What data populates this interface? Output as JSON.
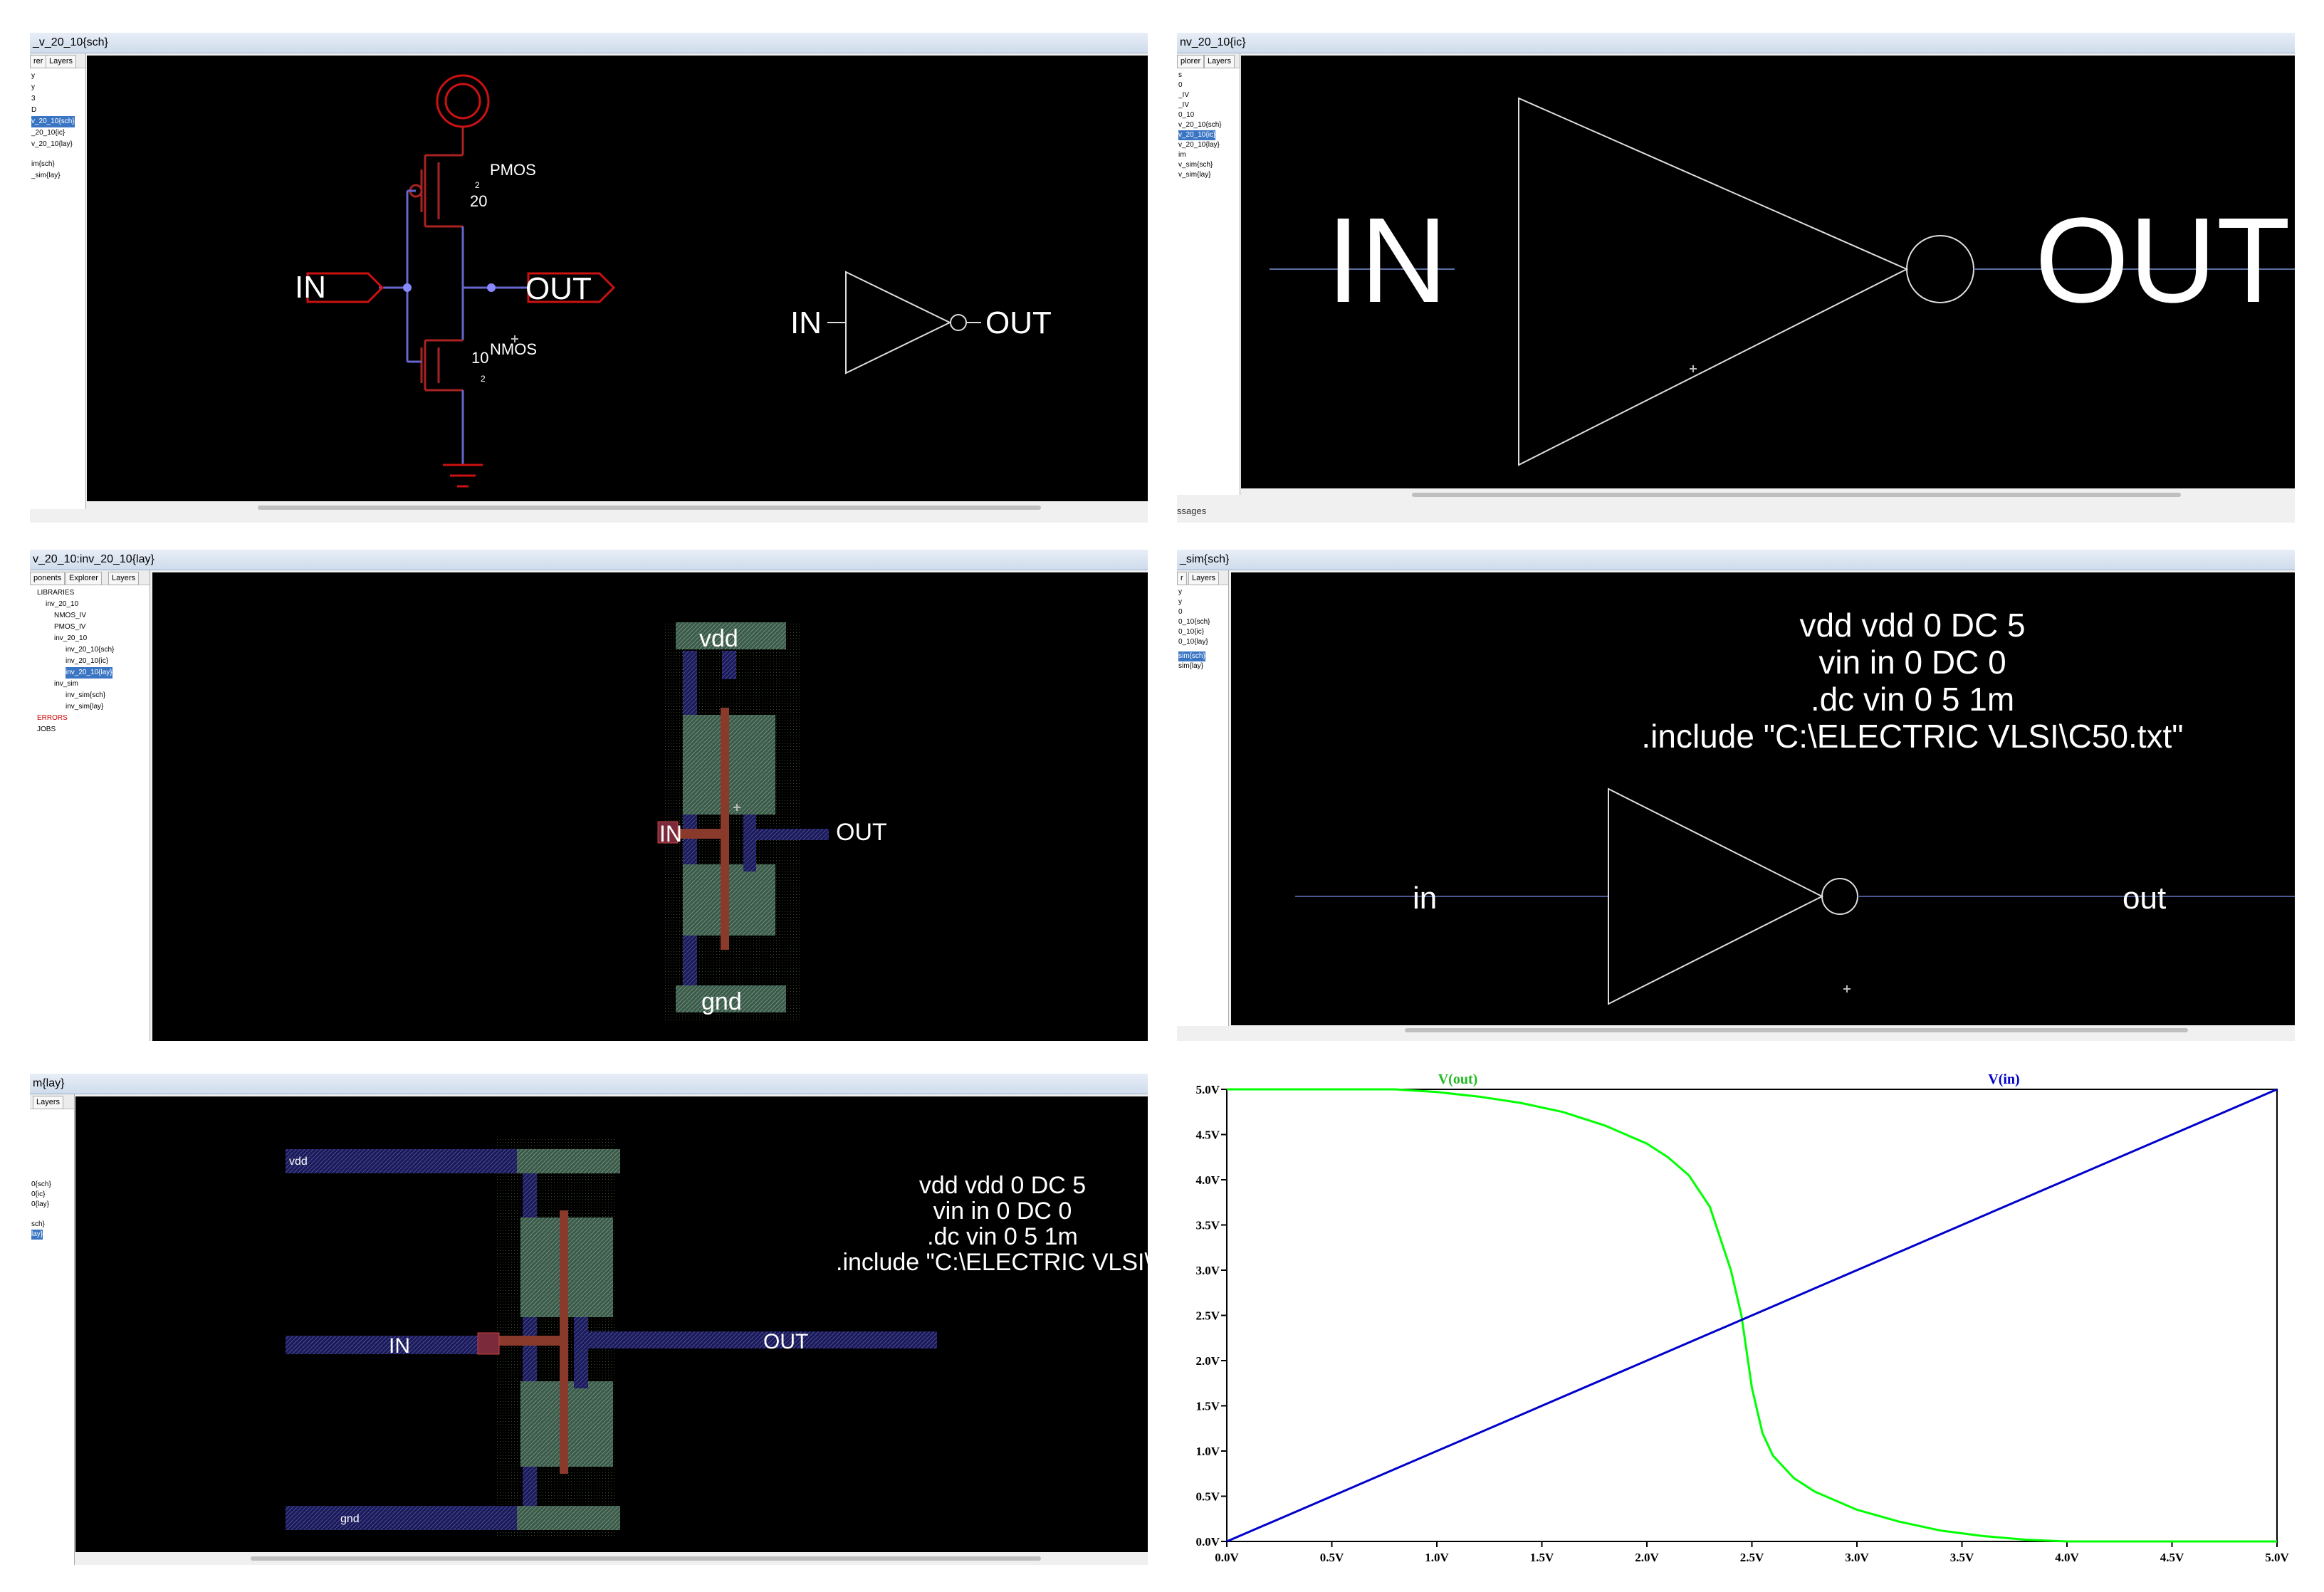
{
  "panels": {
    "sch": {
      "title": "_v_20_10{sch}",
      "tabs": [
        "rer",
        "Layers"
      ],
      "tree": [
        "y",
        "y",
        "3",
        "D",
        "v_20_10{sch}",
        "_20_10{ic}",
        "v_20_10{lay}",
        "im{sch}",
        "_sim{lay}"
      ],
      "tree_selected": 4,
      "labels": {
        "in": "IN",
        "out": "OUT",
        "pmos": "PMOS",
        "nmos": "NMOS",
        "pmos_w": "20",
        "nmos_w": "10",
        "pmos_l": "2",
        "nmos_l": "2",
        "icon_in": "IN",
        "icon_out": "OUT"
      }
    },
    "icon": {
      "title": "nv_20_10{ic}",
      "tabs": [
        "plorer",
        "Layers"
      ],
      "tree": [
        "s",
        "0",
        "_IV",
        "_IV",
        "0_10",
        "v_20_10{sch}",
        "v_20_10{ic}",
        "v_20_10{lay}",
        "im",
        "v_sim{sch}",
        "v_sim{lay}"
      ],
      "tree_selected": 6,
      "labels": {
        "in": "IN",
        "out": "OUT"
      },
      "bottom": "ssages"
    },
    "lay": {
      "title": "v_20_10:inv_20_10{lay}",
      "tabs": [
        "ponents",
        "Explorer",
        "Layers"
      ],
      "tree": [
        "LIBRARIES",
        "inv_20_10",
        "NMOS_IV",
        "PMOS_IV",
        "inv_20_10",
        "inv_20_10{sch}",
        "inv_20_10{ic}",
        "inv_20_10{lay}",
        "inv_sim",
        "inv_sim{sch}",
        "inv_sim{lay}",
        "ERRORS",
        "JOBS"
      ],
      "tree_selected": 7,
      "labels": {
        "vdd": "vdd",
        "gnd": "gnd",
        "in": "IN",
        "out": "OUT"
      }
    },
    "simsch": {
      "title": "_sim{sch}",
      "tabs": [
        "r",
        "Layers"
      ],
      "tree": [
        "y",
        "y",
        "0",
        "0_10{sch}",
        "0_10{ic}",
        "0_10{lay}",
        "sim{sch}",
        "sim{lay}"
      ],
      "tree_selected": 6,
      "spice": [
        "vdd vdd 0 DC 5",
        "vin in 0 DC 0",
        ".dc vin 0 5 1m",
        ".include \"C:\\ELECTRIC VLSI\\C50.txt\""
      ],
      "labels": {
        "in": "in",
        "out": "out"
      }
    },
    "simlay": {
      "title": "m{lay}",
      "tabs": [
        "Layers"
      ],
      "tree": [
        "0{sch}",
        "0{ic}",
        "0{lay}",
        "sch}",
        "lay}"
      ],
      "tree_selected": 4,
      "spice": [
        "vdd vdd 0 DC 5",
        "vin in 0 DC 0",
        ".dc vin 0 5 1m",
        ".include \"C:\\ELECTRIC VLSI\\C"
      ],
      "labels": {
        "vdd": "vdd",
        "gnd": "gnd",
        "in": "IN",
        "out": "OUT"
      }
    }
  },
  "chart_data": {
    "type": "line",
    "title": "",
    "xlabel": "",
    "ylabel": "",
    "xlim": [
      0,
      5
    ],
    "ylim": [
      0,
      5
    ],
    "x_ticks": [
      "0.0V",
      "0.5V",
      "1.0V",
      "1.5V",
      "2.0V",
      "2.5V",
      "3.0V",
      "3.5V",
      "4.0V",
      "4.5V",
      "5.0V"
    ],
    "y_ticks": [
      "0.0V",
      "0.5V",
      "1.0V",
      "1.5V",
      "2.0V",
      "2.5V",
      "3.0V",
      "3.5V",
      "4.0V",
      "4.5V",
      "5.0V"
    ],
    "series": [
      {
        "name": "V(out)",
        "color": "#00ff00",
        "x": [
          0,
          0.5,
          0.8,
          1.0,
          1.2,
          1.4,
          1.6,
          1.8,
          2.0,
          2.1,
          2.2,
          2.3,
          2.4,
          2.45,
          2.5,
          2.55,
          2.6,
          2.7,
          2.8,
          3.0,
          3.2,
          3.4,
          3.6,
          3.8,
          4.0,
          4.2,
          4.5,
          5.0
        ],
        "y": [
          5.0,
          5.0,
          5.0,
          4.97,
          4.92,
          4.85,
          4.75,
          4.6,
          4.4,
          4.25,
          4.05,
          3.7,
          3.0,
          2.5,
          1.7,
          1.2,
          0.95,
          0.7,
          0.55,
          0.35,
          0.22,
          0.12,
          0.06,
          0.02,
          0.0,
          0.0,
          0.0,
          0.0
        ]
      },
      {
        "name": "V(in)",
        "color": "#0000cc",
        "x": [
          0,
          5
        ],
        "y": [
          0,
          5
        ]
      }
    ],
    "grid": false,
    "legend": "top"
  }
}
